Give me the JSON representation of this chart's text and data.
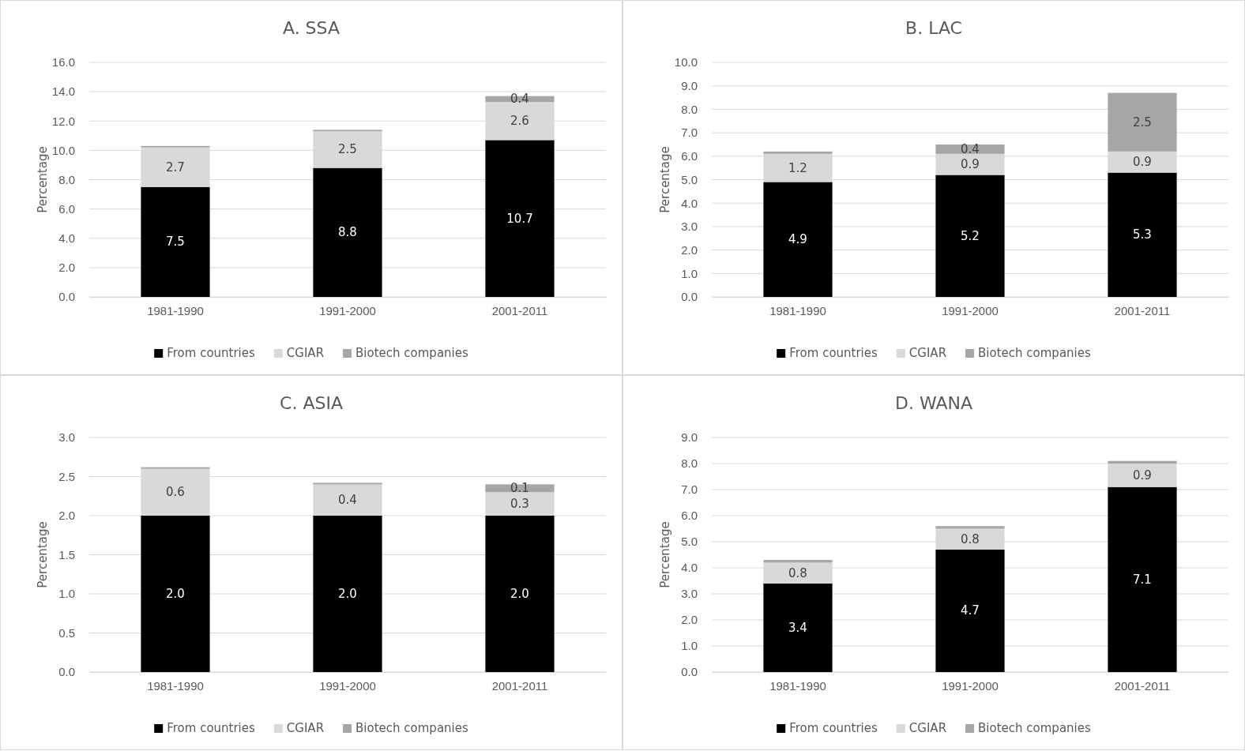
{
  "chart_data": [
    {
      "type": "bar",
      "title": "A. SSA",
      "ylabel": "Percentage",
      "categories": [
        "1981-1990",
        "1991-2000",
        "2001-2011"
      ],
      "stacked": true,
      "grid": "y",
      "legend": "bottom",
      "ylim": [
        0,
        16
      ],
      "yticks": [
        {
          "value": 0,
          "label": "0.0"
        },
        {
          "value": 2,
          "label": "2.0"
        },
        {
          "value": 4,
          "label": "4.0"
        },
        {
          "value": 6,
          "label": "6.0"
        },
        {
          "value": 8,
          "label": "8.0"
        },
        {
          "value": 10,
          "label": "10.0"
        },
        {
          "value": 12,
          "label": "12.0"
        },
        {
          "value": 14,
          "label": "14.0"
        },
        {
          "value": 16,
          "label": "16.0"
        }
      ],
      "series": [
        {
          "name": "From countries",
          "color": "#000000",
          "values": [
            7.5,
            8.8,
            10.7
          ],
          "value_labels": [
            "7.5",
            "8.8",
            "10.7"
          ]
        },
        {
          "name": "CGIAR",
          "color": "#d9d9d9",
          "values": [
            2.7,
            2.5,
            2.6
          ],
          "value_labels": [
            "2.7",
            "2.5",
            "2.6"
          ]
        },
        {
          "name": "Biotech companies",
          "color": "#a6a6a6",
          "values": [
            0.1,
            0.1,
            0.4
          ],
          "value_labels": [
            null,
            null,
            "0.4"
          ]
        }
      ]
    },
    {
      "type": "bar",
      "title": "B. LAC",
      "ylabel": "Percentage",
      "categories": [
        "1981-1990",
        "1991-2000",
        "2001-2011"
      ],
      "stacked": true,
      "grid": "y",
      "legend": "bottom",
      "ylim": [
        0,
        10
      ],
      "yticks": [
        {
          "value": 0,
          "label": "0.0"
        },
        {
          "value": 1,
          "label": "1.0"
        },
        {
          "value": 2,
          "label": "2.0"
        },
        {
          "value": 3,
          "label": "3.0"
        },
        {
          "value": 4,
          "label": "4.0"
        },
        {
          "value": 5,
          "label": "5.0"
        },
        {
          "value": 6,
          "label": "6.0"
        },
        {
          "value": 7,
          "label": "7.0"
        },
        {
          "value": 8,
          "label": "8.0"
        },
        {
          "value": 9,
          "label": "9.0"
        },
        {
          "value": 10,
          "label": "10.0"
        }
      ],
      "series": [
        {
          "name": "From countries",
          "color": "#000000",
          "values": [
            4.9,
            5.2,
            5.3
          ],
          "value_labels": [
            "4.9",
            "5.2",
            "5.3"
          ]
        },
        {
          "name": "CGIAR",
          "color": "#d9d9d9",
          "values": [
            1.2,
            0.9,
            0.9
          ],
          "value_labels": [
            "1.2",
            "0.9",
            "0.9"
          ]
        },
        {
          "name": "Biotech companies",
          "color": "#a6a6a6",
          "values": [
            0.1,
            0.4,
            2.5
          ],
          "value_labels": [
            null,
            "0.4",
            "2.5"
          ]
        }
      ]
    },
    {
      "type": "bar",
      "title": "C. ASIA",
      "ylabel": "Percentage",
      "categories": [
        "1981-1990",
        "1991-2000",
        "2001-2011"
      ],
      "stacked": true,
      "grid": "y",
      "legend": "bottom",
      "ylim": [
        0,
        3
      ],
      "yticks": [
        {
          "value": 0,
          "label": "0.0"
        },
        {
          "value": 0.5,
          "label": "0.5"
        },
        {
          "value": 1,
          "label": "1.0"
        },
        {
          "value": 1.5,
          "label": "1.5"
        },
        {
          "value": 2,
          "label": "2.0"
        },
        {
          "value": 2.5,
          "label": "2.5"
        },
        {
          "value": 3,
          "label": "3.0"
        }
      ],
      "series": [
        {
          "name": "From countries",
          "color": "#000000",
          "values": [
            2.0,
            2.0,
            2.0
          ],
          "value_labels": [
            "2.0",
            "2.0",
            "2.0"
          ]
        },
        {
          "name": "CGIAR",
          "color": "#d9d9d9",
          "values": [
            0.6,
            0.4,
            0.3
          ],
          "value_labels": [
            "0.6",
            "0.4",
            "0.3"
          ]
        },
        {
          "name": "Biotech companies",
          "color": "#a6a6a6",
          "values": [
            0.02,
            0.02,
            0.1
          ],
          "value_labels": [
            null,
            null,
            "0.1"
          ]
        }
      ]
    },
    {
      "type": "bar",
      "title": "D. WANA",
      "ylabel": "Percentage",
      "categories": [
        "1981-1990",
        "1991-2000",
        "2001-2011"
      ],
      "stacked": true,
      "grid": "y",
      "legend": "bottom",
      "ylim": [
        0,
        9
      ],
      "yticks": [
        {
          "value": 0,
          "label": "0.0"
        },
        {
          "value": 1,
          "label": "1.0"
        },
        {
          "value": 2,
          "label": "2.0"
        },
        {
          "value": 3,
          "label": "3.0"
        },
        {
          "value": 4,
          "label": "4.0"
        },
        {
          "value": 5,
          "label": "5.0"
        },
        {
          "value": 6,
          "label": "6.0"
        },
        {
          "value": 7,
          "label": "7.0"
        },
        {
          "value": 8,
          "label": "8.0"
        },
        {
          "value": 9,
          "label": "9.0"
        }
      ],
      "series": [
        {
          "name": "From countries",
          "color": "#000000",
          "values": [
            3.4,
            4.7,
            7.1
          ],
          "value_labels": [
            "3.4",
            "4.7",
            "7.1"
          ]
        },
        {
          "name": "CGIAR",
          "color": "#d9d9d9",
          "values": [
            0.8,
            0.8,
            0.9
          ],
          "value_labels": [
            "0.8",
            "0.8",
            "0.9"
          ]
        },
        {
          "name": "Biotech companies",
          "color": "#a6a6a6",
          "values": [
            0.1,
            0.1,
            0.1
          ],
          "value_labels": [
            null,
            null,
            null
          ]
        }
      ]
    }
  ]
}
